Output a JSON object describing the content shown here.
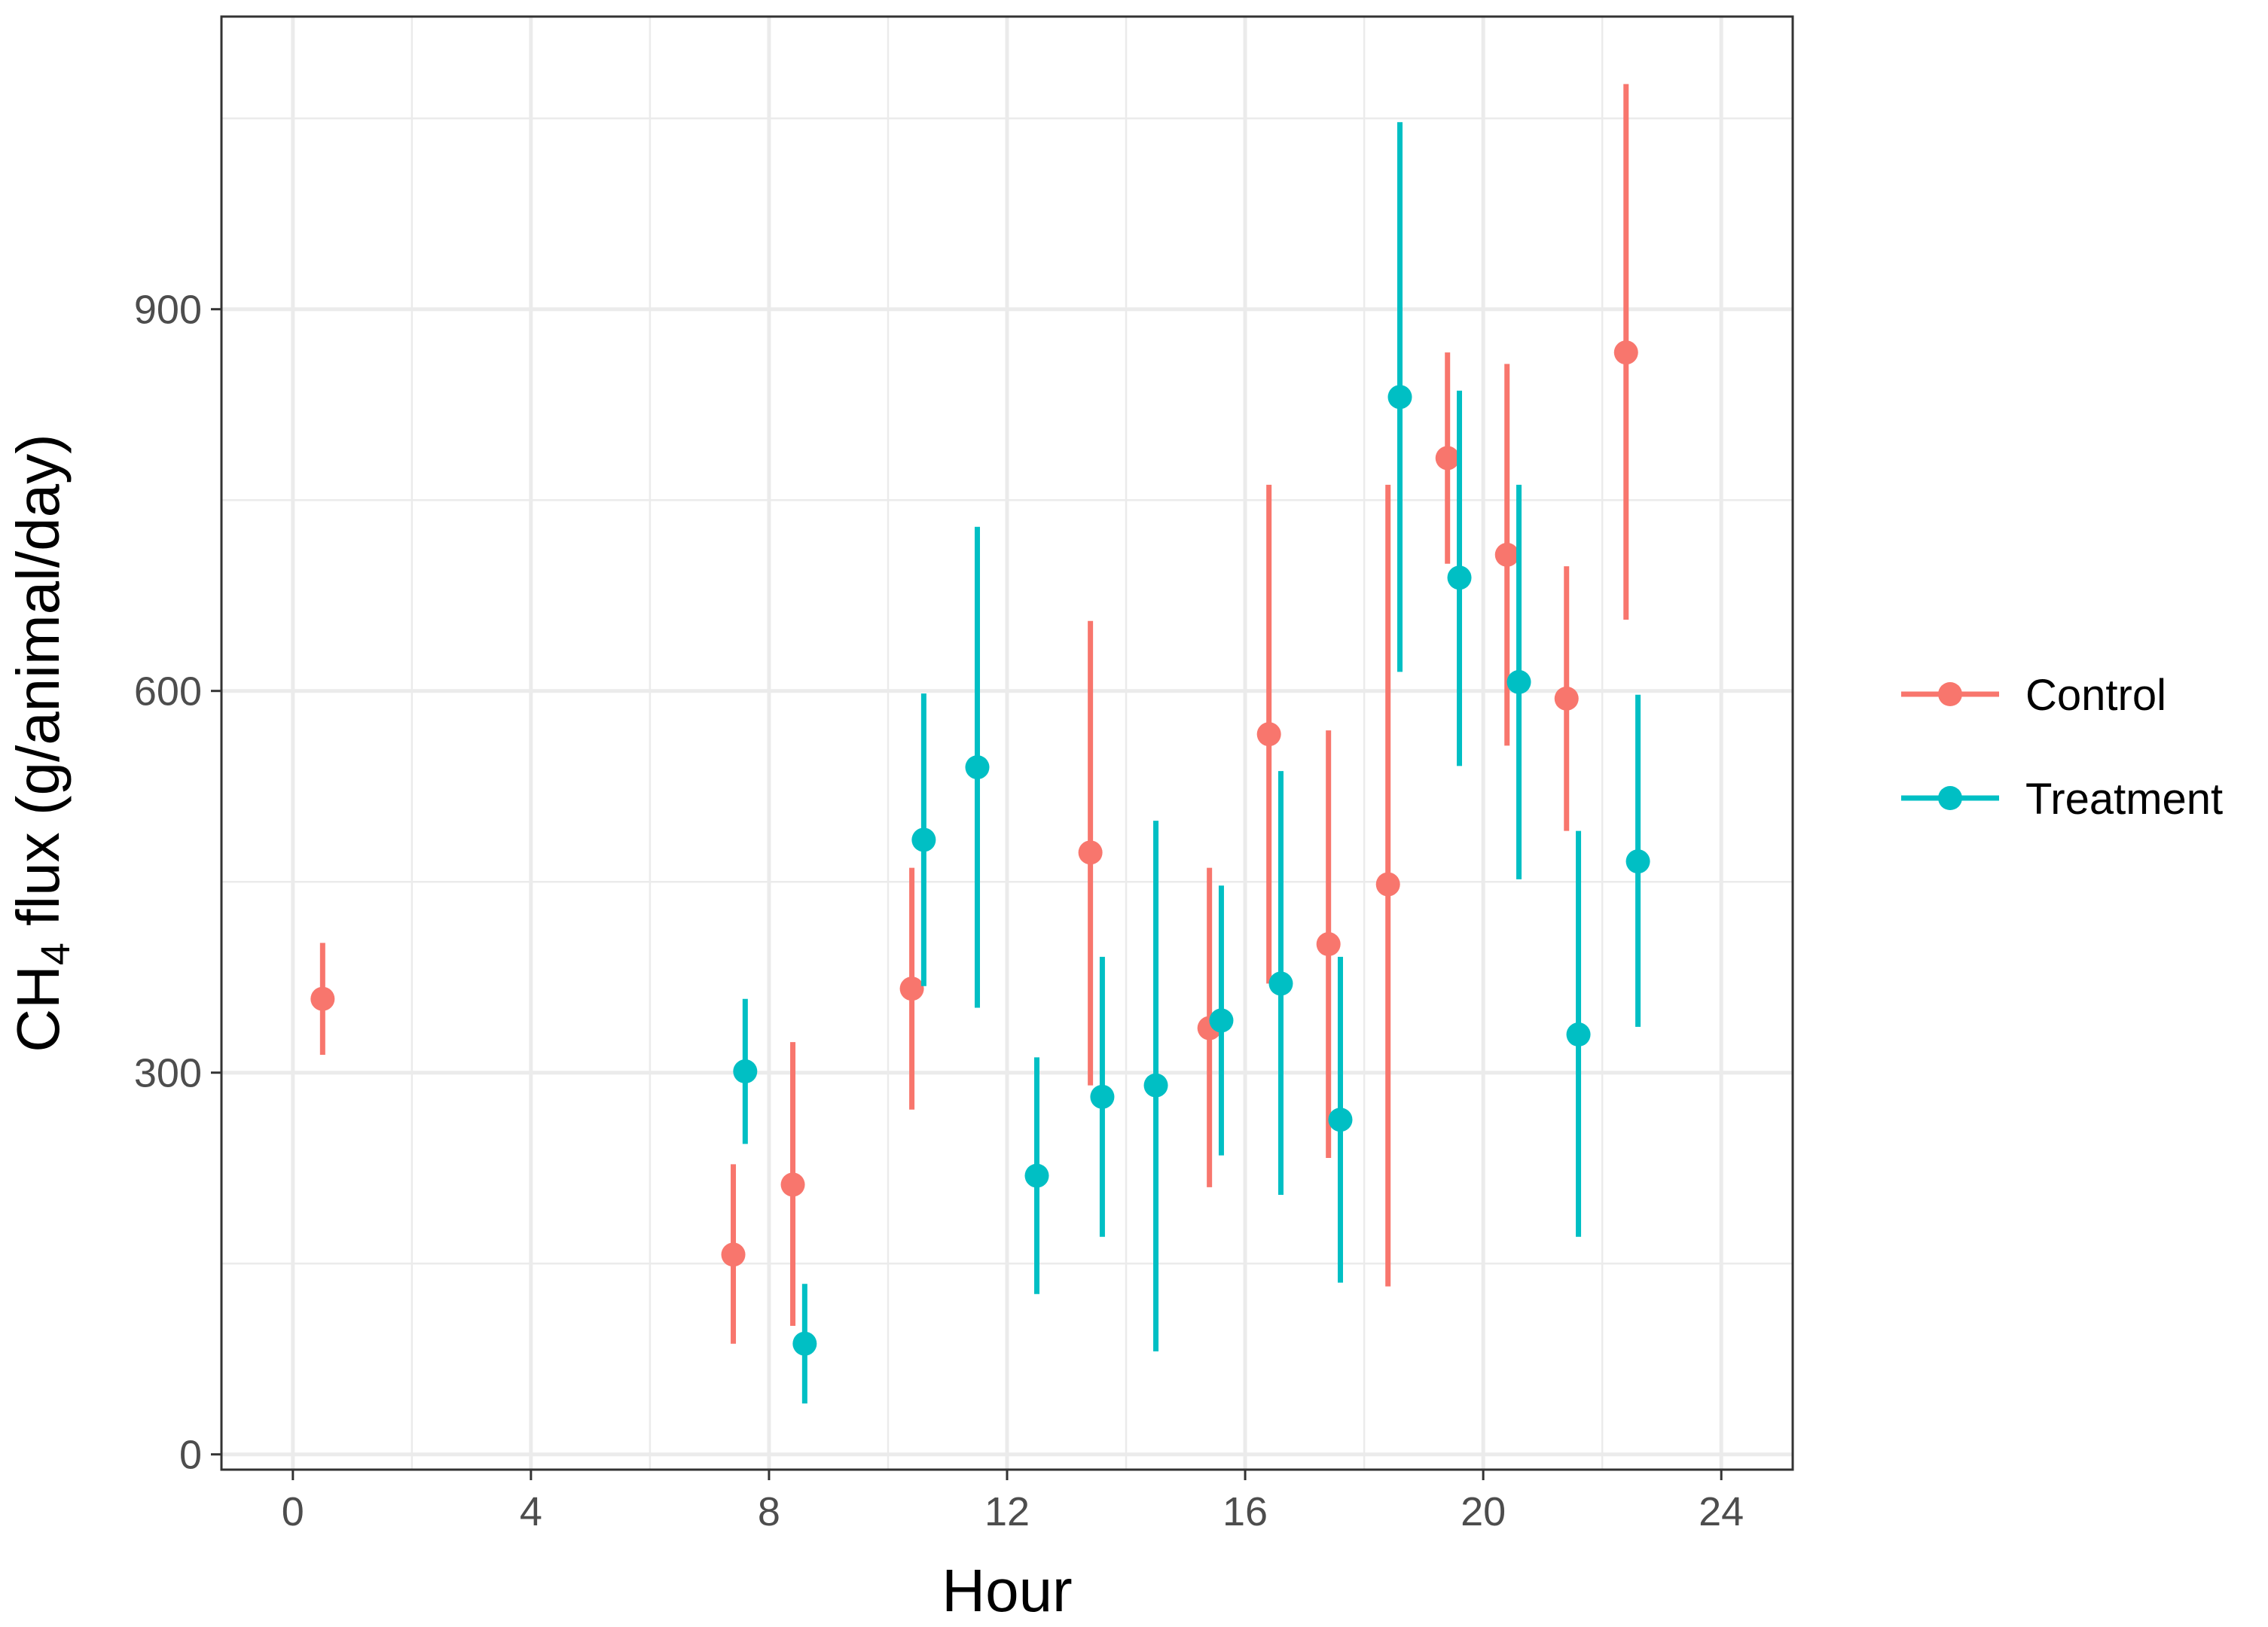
{
  "chart_data": {
    "type": "scatter",
    "xlabel": "Hour",
    "ylabel_main": "CH",
    "ylabel_sub": "4",
    "ylabel_rest": " flux (g/animal/day)",
    "xlim": [
      -1.2,
      25.2
    ],
    "ylim": [
      -12,
      1130
    ],
    "x_ticks": [
      0,
      4,
      8,
      12,
      16,
      20,
      24
    ],
    "y_ticks": [
      0,
      300,
      600,
      900
    ],
    "grid": true,
    "legend_position": "right",
    "colors": {
      "Control": "#F8766D",
      "Treatment": "#00BFC4",
      "grid": "#EBEBEB",
      "panel_border": "#333333"
    },
    "series": [
      {
        "name": "Control",
        "points": [
          {
            "x": 0.5,
            "y": 358,
            "ymin": 314,
            "ymax": 402
          },
          {
            "x": 7.4,
            "y": 157,
            "ymin": 87,
            "ymax": 228
          },
          {
            "x": 8.4,
            "y": 212,
            "ymin": 101,
            "ymax": 324
          },
          {
            "x": 10.4,
            "y": 366,
            "ymin": 271,
            "ymax": 461
          },
          {
            "x": 13.4,
            "y": 473,
            "ymin": 290,
            "ymax": 655
          },
          {
            "x": 15.4,
            "y": 335,
            "ymin": 210,
            "ymax": 461
          },
          {
            "x": 16.4,
            "y": 566,
            "ymin": 370,
            "ymax": 762
          },
          {
            "x": 17.4,
            "y": 401,
            "ymin": 233,
            "ymax": 569
          },
          {
            "x": 18.4,
            "y": 448,
            "ymin": 132,
            "ymax": 762
          },
          {
            "x": 19.4,
            "y": 783,
            "ymin": 700,
            "ymax": 866
          },
          {
            "x": 20.4,
            "y": 707,
            "ymin": 557,
            "ymax": 857
          },
          {
            "x": 21.4,
            "y": 594,
            "ymin": 490,
            "ymax": 698
          },
          {
            "x": 22.4,
            "y": 866,
            "ymin": 656,
            "ymax": 1077
          }
        ]
      },
      {
        "name": "Treatment",
        "points": [
          {
            "x": 7.6,
            "y": 301,
            "ymin": 244,
            "ymax": 358
          },
          {
            "x": 8.6,
            "y": 87,
            "ymin": 40,
            "ymax": 134
          },
          {
            "x": 10.6,
            "y": 483,
            "ymin": 368,
            "ymax": 598
          },
          {
            "x": 11.5,
            "y": 540,
            "ymin": 351,
            "ymax": 729
          },
          {
            "x": 12.5,
            "y": 219,
            "ymin": 126,
            "ymax": 312
          },
          {
            "x": 13.6,
            "y": 281,
            "ymin": 171,
            "ymax": 391
          },
          {
            "x": 14.5,
            "y": 290,
            "ymin": 81,
            "ymax": 498
          },
          {
            "x": 15.6,
            "y": 341,
            "ymin": 235,
            "ymax": 447
          },
          {
            "x": 16.6,
            "y": 370,
            "ymin": 204,
            "ymax": 537
          },
          {
            "x": 17.6,
            "y": 263,
            "ymin": 135,
            "ymax": 391
          },
          {
            "x": 18.6,
            "y": 831,
            "ymin": 615,
            "ymax": 1047
          },
          {
            "x": 19.6,
            "y": 689,
            "ymin": 541,
            "ymax": 836
          },
          {
            "x": 20.6,
            "y": 607,
            "ymin": 452,
            "ymax": 762
          },
          {
            "x": 21.6,
            "y": 330,
            "ymin": 171,
            "ymax": 490
          },
          {
            "x": 22.6,
            "y": 466,
            "ymin": 336,
            "ymax": 597
          }
        ]
      }
    ]
  }
}
